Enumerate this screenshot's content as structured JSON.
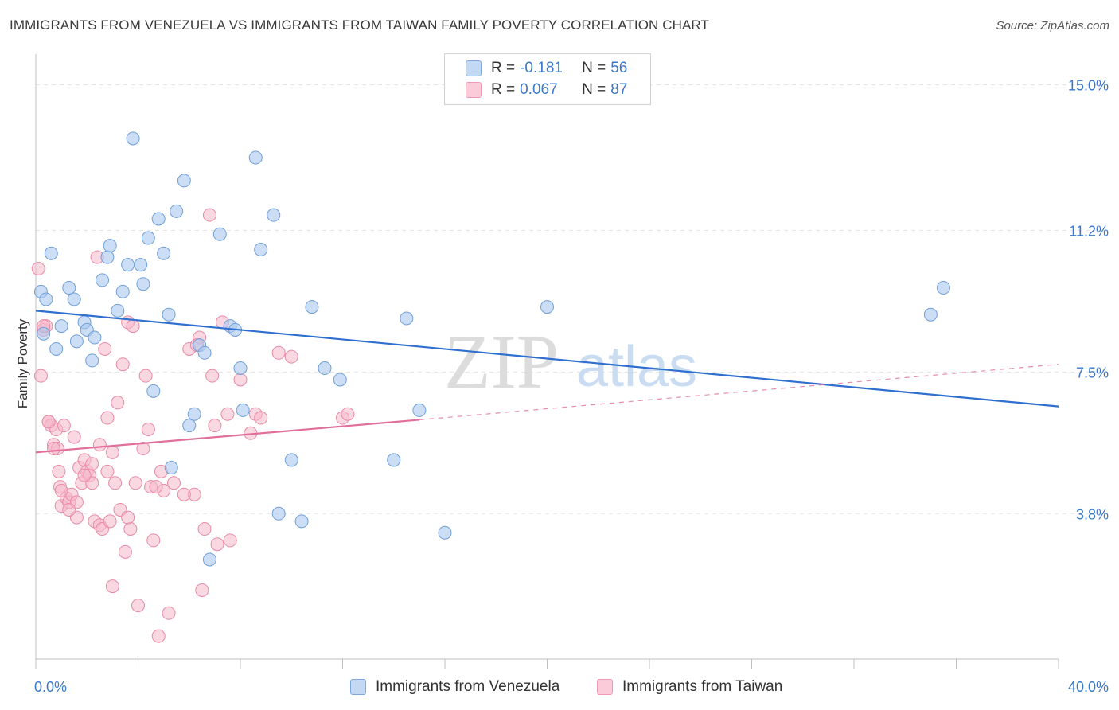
{
  "title": "IMMIGRANTS FROM VENEZUELA VS IMMIGRANTS FROM TAIWAN FAMILY POVERTY CORRELATION CHART",
  "source": "Source: ZipAtlas.com",
  "watermark": {
    "zip": "ZIP",
    "atlas": "atlas"
  },
  "legend": {
    "rows": [
      {
        "r_label": "R =",
        "r_value": "-0.181",
        "n_label": "N =",
        "n_value": "56"
      },
      {
        "r_label": "R =",
        "r_value": "0.067",
        "n_label": "N =",
        "n_value": "87"
      }
    ]
  },
  "colors": {
    "venezuela_fill": "#aac8ef",
    "venezuela_stroke": "#6f9fd8",
    "venezuela_line": "#2e6fcf",
    "taiwan_fill": "#f6b8cb",
    "taiwan_stroke": "#e98aa8",
    "taiwan_line": "#e0709a",
    "tick_label": "#3a78c9",
    "grid": "#e3e3e3"
  },
  "chart_data": {
    "type": "scatter",
    "title": "IMMIGRANTS FROM VENEZUELA VS IMMIGRANTS FROM TAIWAN FAMILY POVERTY CORRELATION CHART",
    "xlabel": "",
    "ylabel": "Family Poverty",
    "xlim": [
      0,
      40
    ],
    "ylim": [
      0,
      15.7
    ],
    "x_tick_labels": [
      "0.0%",
      "40.0%"
    ],
    "y_ticks": [
      3.8,
      7.5,
      11.2,
      15.0
    ],
    "y_tick_labels": [
      "3.8%",
      "7.5%",
      "11.2%",
      "15.0%"
    ],
    "grid": true,
    "legend_position": "top-center",
    "series": [
      {
        "name": "Immigrants from Venezuela",
        "r": -0.181,
        "n": 56,
        "trend": {
          "x": [
            0,
            40
          ],
          "y": [
            9.1,
            6.6
          ]
        },
        "points": [
          [
            0.2,
            9.6
          ],
          [
            0.3,
            8.5
          ],
          [
            0.4,
            9.4
          ],
          [
            0.6,
            10.6
          ],
          [
            0.8,
            8.1
          ],
          [
            1.0,
            8.7
          ],
          [
            1.3,
            9.7
          ],
          [
            1.5,
            9.4
          ],
          [
            1.6,
            8.3
          ],
          [
            1.9,
            8.8
          ],
          [
            2.0,
            8.6
          ],
          [
            2.2,
            7.8
          ],
          [
            2.3,
            8.4
          ],
          [
            2.6,
            9.9
          ],
          [
            2.8,
            10.5
          ],
          [
            2.9,
            10.8
          ],
          [
            3.2,
            9.1
          ],
          [
            3.4,
            9.6
          ],
          [
            3.6,
            10.3
          ],
          [
            3.8,
            13.6
          ],
          [
            4.1,
            10.3
          ],
          [
            4.2,
            9.8
          ],
          [
            4.4,
            11.0
          ],
          [
            4.6,
            7.0
          ],
          [
            4.8,
            11.5
          ],
          [
            5.0,
            10.6
          ],
          [
            5.2,
            9.0
          ],
          [
            5.3,
            5.0
          ],
          [
            5.5,
            11.7
          ],
          [
            5.8,
            12.5
          ],
          [
            6.0,
            6.1
          ],
          [
            6.2,
            6.4
          ],
          [
            6.4,
            8.2
          ],
          [
            6.6,
            8.0
          ],
          [
            6.8,
            2.6
          ],
          [
            7.2,
            11.1
          ],
          [
            7.6,
            8.7
          ],
          [
            7.8,
            8.6
          ],
          [
            8.0,
            7.6
          ],
          [
            8.1,
            6.5
          ],
          [
            8.6,
            13.1
          ],
          [
            8.8,
            10.7
          ],
          [
            9.3,
            11.6
          ],
          [
            9.5,
            3.8
          ],
          [
            10.0,
            5.2
          ],
          [
            10.4,
            3.6
          ],
          [
            10.8,
            9.2
          ],
          [
            11.3,
            7.6
          ],
          [
            11.9,
            7.3
          ],
          [
            14.0,
            5.2
          ],
          [
            14.5,
            8.9
          ],
          [
            15.0,
            6.5
          ],
          [
            16.0,
            3.3
          ],
          [
            20.0,
            9.2
          ],
          [
            35.0,
            9.0
          ],
          [
            35.5,
            9.7
          ]
        ]
      },
      {
        "name": "Immigrants from Taiwan",
        "r": 0.067,
        "n": 87,
        "trend": {
          "x": [
            0,
            15
          ],
          "y": [
            5.4,
            6.25
          ]
        },
        "trend_dashed": {
          "x": [
            15,
            40
          ],
          "y": [
            6.25,
            7.7
          ]
        },
        "points": [
          [
            0.1,
            10.2
          ],
          [
            0.2,
            7.4
          ],
          [
            0.3,
            8.6
          ],
          [
            0.4,
            8.7
          ],
          [
            0.5,
            6.2
          ],
          [
            0.6,
            6.1
          ],
          [
            0.7,
            5.6
          ],
          [
            0.8,
            6.0
          ],
          [
            0.85,
            5.5
          ],
          [
            0.9,
            4.9
          ],
          [
            0.95,
            4.5
          ],
          [
            1.0,
            4.0
          ],
          [
            1.1,
            6.1
          ],
          [
            1.2,
            4.2
          ],
          [
            1.3,
            4.1
          ],
          [
            1.4,
            4.3
          ],
          [
            1.5,
            5.8
          ],
          [
            1.6,
            3.7
          ],
          [
            1.7,
            5.0
          ],
          [
            1.8,
            4.6
          ],
          [
            1.9,
            5.2
          ],
          [
            2.0,
            4.9
          ],
          [
            2.1,
            4.8
          ],
          [
            2.2,
            5.1
          ],
          [
            2.3,
            3.6
          ],
          [
            2.4,
            10.5
          ],
          [
            2.5,
            3.5
          ],
          [
            2.6,
            3.4
          ],
          [
            2.7,
            8.1
          ],
          [
            2.8,
            4.9
          ],
          [
            2.9,
            3.6
          ],
          [
            3.0,
            1.9
          ],
          [
            3.1,
            4.6
          ],
          [
            3.2,
            6.7
          ],
          [
            3.3,
            3.9
          ],
          [
            3.4,
            7.7
          ],
          [
            3.5,
            2.8
          ],
          [
            3.6,
            8.8
          ],
          [
            3.7,
            3.4
          ],
          [
            3.8,
            8.7
          ],
          [
            4.0,
            1.4
          ],
          [
            4.2,
            5.5
          ],
          [
            4.3,
            7.4
          ],
          [
            4.4,
            6.0
          ],
          [
            4.5,
            4.5
          ],
          [
            4.6,
            3.1
          ],
          [
            4.8,
            0.6
          ],
          [
            4.9,
            4.9
          ],
          [
            5.0,
            4.4
          ],
          [
            5.2,
            1.2
          ],
          [
            5.4,
            4.6
          ],
          [
            6.0,
            8.1
          ],
          [
            6.2,
            4.3
          ],
          [
            6.4,
            8.4
          ],
          [
            6.5,
            1.8
          ],
          [
            6.6,
            3.4
          ],
          [
            6.8,
            11.6
          ],
          [
            6.9,
            7.4
          ],
          [
            7.0,
            6.1
          ],
          [
            7.1,
            3.0
          ],
          [
            7.3,
            8.8
          ],
          [
            7.5,
            6.4
          ],
          [
            7.6,
            3.1
          ],
          [
            8.0,
            7.3
          ],
          [
            8.4,
            5.9
          ],
          [
            8.6,
            6.4
          ],
          [
            8.8,
            6.3
          ],
          [
            9.5,
            8.0
          ],
          [
            10.0,
            7.9
          ],
          [
            12.0,
            6.3
          ],
          [
            12.2,
            6.4
          ],
          [
            1.0,
            4.4
          ],
          [
            1.6,
            4.1
          ],
          [
            2.2,
            4.6
          ],
          [
            3.0,
            5.4
          ],
          [
            3.9,
            4.6
          ],
          [
            0.5,
            6.2
          ],
          [
            1.3,
            3.9
          ],
          [
            2.5,
            5.6
          ],
          [
            4.7,
            4.5
          ],
          [
            0.7,
            5.5
          ],
          [
            1.9,
            4.8
          ],
          [
            2.8,
            6.3
          ],
          [
            3.6,
            3.7
          ],
          [
            5.8,
            4.3
          ],
          [
            6.3,
            8.2
          ],
          [
            0.3,
            8.7
          ]
        ]
      }
    ]
  },
  "bottom_legend": [
    {
      "label": "Immigrants from Venezuela"
    },
    {
      "label": "Immigrants from Taiwan"
    }
  ]
}
